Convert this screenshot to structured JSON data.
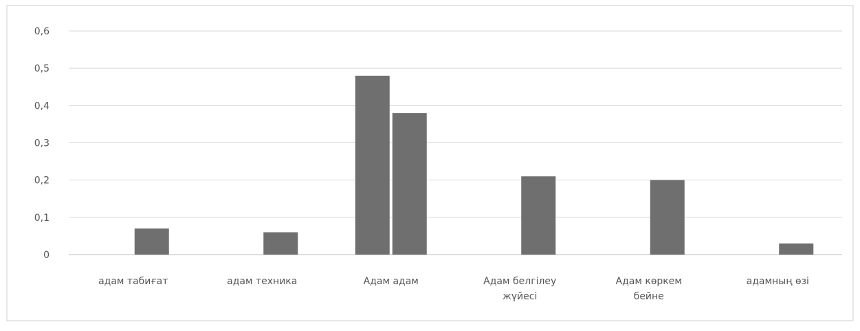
{
  "chart_data": {
    "type": "bar",
    "categories": [
      [
        "адам табиғат"
      ],
      [
        "адам техника"
      ],
      [
        "Адам адам"
      ],
      [
        "Адам белгілеу",
        "жүйесі"
      ],
      [
        "Адам көркем",
        "бейне"
      ],
      [
        "адамның өзі"
      ]
    ],
    "series": [
      {
        "values": [
          0,
          0,
          0.48,
          0,
          0,
          0
        ]
      },
      {
        "values": [
          0.07,
          0.06,
          0.38,
          0.21,
          0.2,
          0.03
        ]
      }
    ],
    "yticks": [
      "0",
      "0,1",
      "0,2",
      "0,3",
      "0,4",
      "0,5",
      "0,6"
    ],
    "ylim": [
      0,
      0.6
    ],
    "grid": true,
    "legend": "none",
    "bar_color": "#6f6f6f",
    "grid_color": "#d9d9d9",
    "frame_color": "#cfcfcf"
  }
}
